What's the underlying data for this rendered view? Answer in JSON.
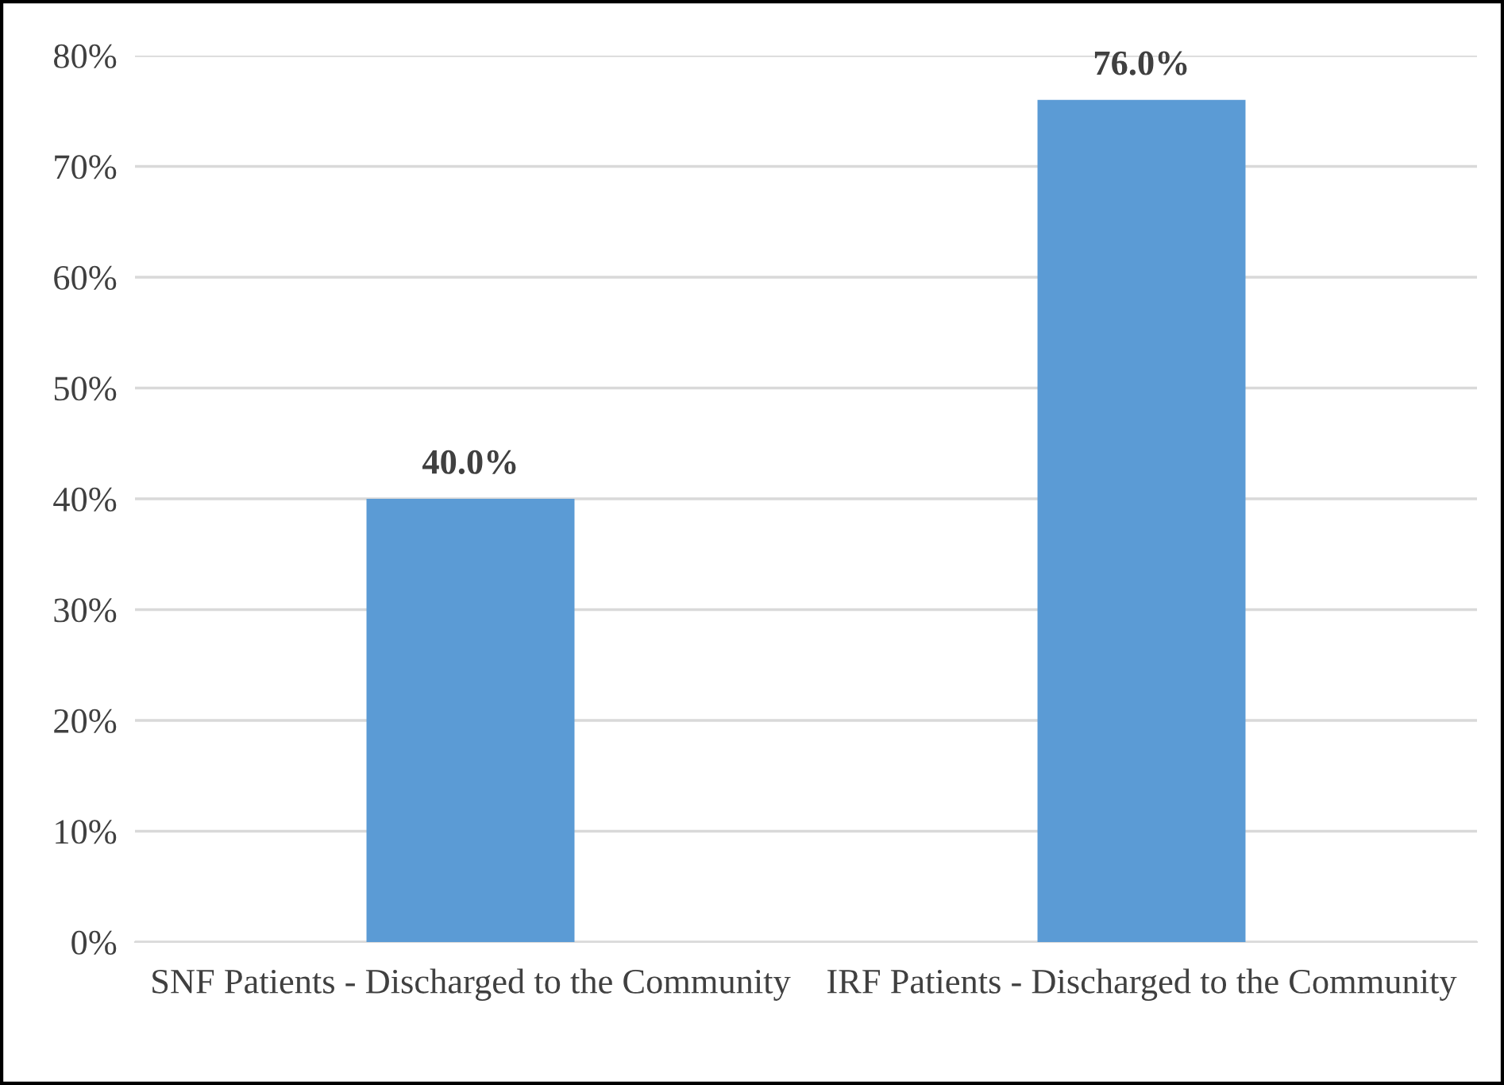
{
  "chart_data": {
    "type": "bar",
    "categories": [
      "SNF Patients - Discharged to the Community",
      "IRF Patients - Discharged to the Community"
    ],
    "values": [
      40,
      76
    ],
    "color": "#5b9bd5",
    "value_labels": [
      "40.0%",
      "76.0%"
    ],
    "ylim": [
      0,
      80
    ],
    "yticks": [
      {
        "value": 0,
        "label": "0%"
      },
      {
        "value": 10,
        "label": "10%"
      },
      {
        "value": 20,
        "label": "20%"
      },
      {
        "value": 30,
        "label": "30%"
      },
      {
        "value": 40,
        "label": "40%"
      },
      {
        "value": 50,
        "label": "50%"
      },
      {
        "value": 60,
        "label": "60%"
      },
      {
        "value": 70,
        "label": "70%"
      },
      {
        "value": 80,
        "label": "80%"
      }
    ],
    "grid": "y",
    "legend": false
  }
}
